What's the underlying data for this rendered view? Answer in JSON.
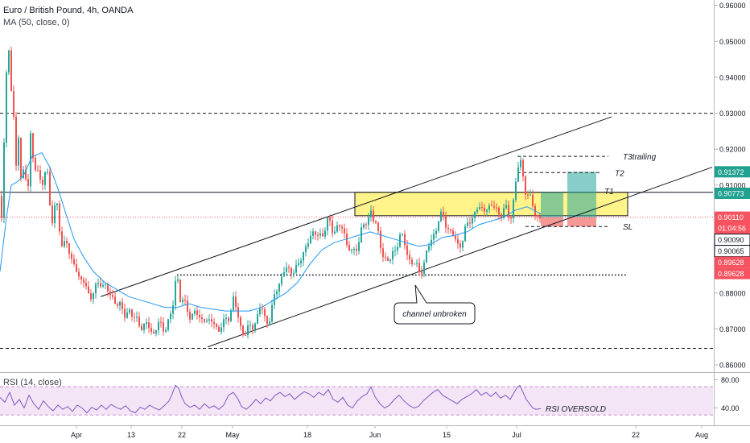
{
  "header": {
    "pair": "Euro / British Pound",
    "timeframe": "4h",
    "exchange": "OANDA",
    "ma_label": "MA (50, close, 0)",
    "rsi_label": "RSI (14, close)"
  },
  "chart_data": {
    "type": "candlestick",
    "y_axis": {
      "ticks": [
        "0.96000",
        "0.95000",
        "0.94000",
        "0.93000",
        "0.92000",
        "0.91000",
        "0.90000",
        "0.89000",
        "0.88000",
        "0.87000",
        "0.86000"
      ],
      "range": [
        0.858,
        0.9615
      ]
    },
    "x_axis": {
      "ticks": [
        "Apr",
        "13",
        "22",
        "May",
        "18",
        "Jun",
        "15",
        "Jul",
        "22",
        "Aug"
      ]
    },
    "price_path": [
      [
        0,
        0.907
      ],
      [
        2,
        0.901
      ],
      [
        4,
        0.915
      ],
      [
        7,
        0.935
      ],
      [
        10,
        0.95
      ],
      [
        14,
        0.938
      ],
      [
        17,
        0.93
      ],
      [
        20,
        0.914
      ],
      [
        24,
        0.925
      ],
      [
        27,
        0.906
      ],
      [
        30,
        0.919
      ],
      [
        34,
        0.906
      ],
      [
        38,
        0.923
      ],
      [
        42,
        0.914
      ],
      [
        46,
        0.917
      ],
      [
        52,
        0.908
      ],
      [
        58,
        0.916
      ],
      [
        64,
        0.9
      ],
      [
        70,
        0.905
      ],
      [
        76,
        0.894
      ],
      [
        82,
        0.895
      ],
      [
        88,
        0.888
      ],
      [
        94,
        0.889
      ],
      [
        100,
        0.882
      ],
      [
        106,
        0.883
      ],
      [
        112,
        0.879
      ],
      [
        118,
        0.88
      ],
      [
        124,
        0.884
      ],
      [
        130,
        0.882
      ],
      [
        136,
        0.879
      ],
      [
        142,
        0.879
      ],
      [
        148,
        0.876
      ],
      [
        154,
        0.874
      ],
      [
        160,
        0.876
      ],
      [
        166,
        0.872
      ],
      [
        172,
        0.873
      ],
      [
        178,
        0.87
      ],
      [
        184,
        0.871
      ],
      [
        190,
        0.869
      ],
      [
        196,
        0.871
      ],
      [
        202,
        0.87
      ],
      [
        208,
        0.872
      ],
      [
        214,
        0.874
      ],
      [
        218,
        0.883
      ],
      [
        221,
        0.8845
      ],
      [
        224,
        0.879
      ],
      [
        230,
        0.876
      ],
      [
        236,
        0.874
      ],
      [
        242,
        0.875
      ],
      [
        248,
        0.872
      ],
      [
        254,
        0.874
      ],
      [
        260,
        0.871
      ],
      [
        266,
        0.872
      ],
      [
        272,
        0.87
      ],
      [
        278,
        0.871
      ],
      [
        284,
        0.874
      ],
      [
        290,
        0.878
      ],
      [
        296,
        0.873
      ],
      [
        300,
        0.87
      ],
      [
        306,
        0.869
      ],
      [
        312,
        0.87
      ],
      [
        318,
        0.873
      ],
      [
        324,
        0.876
      ],
      [
        330,
        0.872
      ],
      [
        336,
        0.874
      ],
      [
        342,
        0.879
      ],
      [
        348,
        0.884
      ],
      [
        354,
        0.887
      ],
      [
        360,
        0.885
      ],
      [
        366,
        0.888
      ],
      [
        372,
        0.887
      ],
      [
        378,
        0.892
      ],
      [
        384,
        0.896
      ],
      [
        390,
        0.895
      ],
      [
        396,
        0.898
      ],
      [
        402,
        0.895
      ],
      [
        408,
        0.901
      ],
      [
        414,
        0.898
      ],
      [
        420,
        0.897
      ],
      [
        426,
        0.899
      ],
      [
        432,
        0.893
      ],
      [
        438,
        0.89
      ],
      [
        444,
        0.894
      ],
      [
        450,
        0.898
      ],
      [
        456,
        0.899
      ],
      [
        461,
        0.904
      ],
      [
        466,
        0.899
      ],
      [
        472,
        0.894
      ],
      [
        478,
        0.89
      ],
      [
        484,
        0.888
      ],
      [
        490,
        0.892
      ],
      [
        496,
        0.896
      ],
      [
        502,
        0.894
      ],
      [
        508,
        0.89
      ],
      [
        514,
        0.888
      ],
      [
        520,
        0.886
      ],
      [
        526,
        0.888
      ],
      [
        532,
        0.892
      ],
      [
        538,
        0.896
      ],
      [
        544,
        0.9
      ],
      [
        550,
        0.901
      ],
      [
        556,
        0.899
      ],
      [
        562,
        0.896
      ],
      [
        568,
        0.893
      ],
      [
        574,
        0.895
      ],
      [
        580,
        0.898
      ],
      [
        586,
        0.901
      ],
      [
        592,
        0.904
      ],
      [
        598,
        0.902
      ],
      [
        604,
        0.905
      ],
      [
        610,
        0.903
      ],
      [
        616,
        0.904
      ],
      [
        622,
        0.902
      ],
      [
        628,
        0.903
      ],
      [
        634,
        0.901
      ],
      [
        638,
        0.906
      ],
      [
        642,
        0.912
      ],
      [
        646,
        0.917
      ],
      [
        650,
        0.913
      ],
      [
        654,
        0.908
      ],
      [
        658,
        0.906
      ],
      [
        662,
        0.904
      ],
      [
        666,
        0.902
      ],
      [
        672,
        0.9011
      ]
    ],
    "ma50_path": [
      [
        0,
        0.886
      ],
      [
        8,
        0.901
      ],
      [
        14,
        0.91
      ],
      [
        22,
        0.911
      ],
      [
        30,
        0.913
      ],
      [
        40,
        0.918
      ],
      [
        52,
        0.919
      ],
      [
        62,
        0.915
      ],
      [
        72,
        0.909
      ],
      [
        82,
        0.902
      ],
      [
        92,
        0.895
      ],
      [
        104,
        0.89
      ],
      [
        116,
        0.886
      ],
      [
        130,
        0.883
      ],
      [
        145,
        0.881
      ],
      [
        160,
        0.879
      ],
      [
        175,
        0.878
      ],
      [
        190,
        0.877
      ],
      [
        205,
        0.876
      ],
      [
        220,
        0.876
      ],
      [
        235,
        0.877
      ],
      [
        250,
        0.876
      ],
      [
        265,
        0.8755
      ],
      [
        280,
        0.875
      ],
      [
        295,
        0.875
      ],
      [
        310,
        0.875
      ],
      [
        325,
        0.876
      ],
      [
        340,
        0.878
      ],
      [
        355,
        0.88
      ],
      [
        370,
        0.883
      ],
      [
        385,
        0.888
      ],
      [
        400,
        0.892
      ],
      [
        415,
        0.894
      ],
      [
        430,
        0.895
      ],
      [
        445,
        0.896
      ],
      [
        460,
        0.897
      ],
      [
        475,
        0.896
      ],
      [
        490,
        0.895
      ],
      [
        505,
        0.894
      ],
      [
        520,
        0.893
      ],
      [
        535,
        0.8935
      ],
      [
        550,
        0.8955
      ],
      [
        565,
        0.896
      ],
      [
        580,
        0.897
      ],
      [
        595,
        0.899
      ],
      [
        610,
        0.9
      ],
      [
        625,
        0.901
      ],
      [
        640,
        0.903
      ],
      [
        655,
        0.904
      ],
      [
        672,
        0.902
      ]
    ],
    "channel_upper": [
      [
        125,
        0.879
      ],
      [
        760,
        0.929
      ]
    ],
    "channel_lower": [
      [
        258,
        0.865
      ],
      [
        885,
        0.915
      ]
    ],
    "supply_zone": {
      "x1": 441,
      "x2": 780,
      "y_top": 0.908,
      "y_bottom": 0.9015
    },
    "levels": [
      {
        "name": "dashed-high",
        "value": 0.93,
        "x1": 0,
        "x2": 886,
        "style": "dashed"
      },
      {
        "name": "dashed-low",
        "value": 0.8646,
        "x1": 0,
        "x2": 886,
        "style": "dashed"
      },
      {
        "name": "solid-resistance",
        "value": 0.908,
        "x1": 0,
        "x2": 886,
        "style": "solid"
      },
      {
        "name": "dotted-support",
        "value": 0.885,
        "x1": 220,
        "x2": 778,
        "style": "dotted"
      },
      {
        "name": "current-price",
        "value": 0.9011,
        "x1": 0,
        "x2": 886,
        "style": "price"
      }
    ],
    "target_lines": [
      {
        "label": "T3trailing",
        "value": 0.918,
        "x1": 643,
        "x2": 770
      },
      {
        "label": "T2",
        "value": 0.9135,
        "x1": 643,
        "x2": 760
      },
      {
        "label": "SL",
        "value": 0.8985,
        "x1": 653,
        "x2": 770
      }
    ],
    "t1_label": "T1",
    "positions": [
      {
        "x1": 672,
        "x2": 700,
        "entry": 0.9011,
        "target": 0.908,
        "stop": 0.8985
      },
      {
        "x1": 705,
        "x2": 741,
        "entry": 0.9011,
        "target": 0.9137,
        "stop": 0.8985
      }
    ],
    "price_labels": [
      {
        "value": 0.91372,
        "text": "0.91372",
        "color": "#21a18f"
      },
      {
        "value": 0.90773,
        "text": "0.90773",
        "color": "#21a18f"
      },
      {
        "value": 0.9011,
        "text": "0.90110",
        "color": "#f7525f",
        "countdown": "01:04:56"
      },
      {
        "value": 0.9009,
        "text": "0.90090",
        "color": "#131722",
        "outline": true
      },
      {
        "value": 0.90065,
        "text": "0.90065",
        "color": "#131722",
        "outline": true
      },
      {
        "value": 0.89628,
        "text": "0.89628",
        "color": "#f7525f"
      },
      {
        "value": 0.89628,
        "text": "0.89628",
        "color": "#f7525f",
        "offset": 1
      }
    ],
    "annotations": {
      "callout": "channel unbroken",
      "rsi_note": "RSI OVERSOLD"
    },
    "rsi": {
      "ticks": [
        "80.00",
        "40.00"
      ],
      "range": [
        20,
        85
      ],
      "band": [
        30,
        70
      ],
      "path": [
        [
          0,
          55
        ],
        [
          6,
          48
        ],
        [
          12,
          62
        ],
        [
          18,
          44
        ],
        [
          24,
          52
        ],
        [
          30,
          40
        ],
        [
          36,
          58
        ],
        [
          42,
          46
        ],
        [
          48,
          38
        ],
        [
          54,
          50
        ],
        [
          60,
          42
        ],
        [
          66,
          36
        ],
        [
          72,
          44
        ],
        [
          78,
          38
        ],
        [
          84,
          42
        ],
        [
          90,
          35
        ],
        [
          96,
          44
        ],
        [
          102,
          40
        ],
        [
          108,
          33
        ],
        [
          114,
          41
        ],
        [
          120,
          37
        ],
        [
          126,
          44
        ],
        [
          132,
          38
        ],
        [
          138,
          45
        ],
        [
          144,
          41
        ],
        [
          150,
          38
        ],
        [
          156,
          43
        ],
        [
          162,
          36
        ],
        [
          168,
          33
        ],
        [
          174,
          41
        ],
        [
          180,
          38
        ],
        [
          186,
          44
        ],
        [
          192,
          40
        ],
        [
          198,
          37
        ],
        [
          204,
          43
        ],
        [
          210,
          50
        ],
        [
          214,
          60
        ],
        [
          218,
          72
        ],
        [
          222,
          68
        ],
        [
          226,
          55
        ],
        [
          230,
          46
        ],
        [
          236,
          41
        ],
        [
          242,
          44
        ],
        [
          248,
          38
        ],
        [
          254,
          46
        ],
        [
          260,
          40
        ],
        [
          266,
          43
        ],
        [
          272,
          38
        ],
        [
          278,
          44
        ],
        [
          284,
          58
        ],
        [
          290,
          62
        ],
        [
          296,
          52
        ],
        [
          300,
          42
        ],
        [
          306,
          38
        ],
        [
          312,
          44
        ],
        [
          318,
          52
        ],
        [
          324,
          46
        ],
        [
          330,
          54
        ],
        [
          336,
          50
        ],
        [
          342,
          58
        ],
        [
          348,
          62
        ],
        [
          354,
          56
        ],
        [
          360,
          60
        ],
        [
          366,
          52
        ],
        [
          372,
          58
        ],
        [
          378,
          63
        ],
        [
          384,
          60
        ],
        [
          390,
          55
        ],
        [
          396,
          62
        ],
        [
          402,
          58
        ],
        [
          408,
          66
        ],
        [
          414,
          52
        ],
        [
          420,
          48
        ],
        [
          426,
          55
        ],
        [
          432,
          44
        ],
        [
          438,
          40
        ],
        [
          444,
          50
        ],
        [
          450,
          56
        ],
        [
          456,
          60
        ],
        [
          461,
          70
        ],
        [
          466,
          56
        ],
        [
          472,
          46
        ],
        [
          478,
          40
        ],
        [
          484,
          44
        ],
        [
          490,
          52
        ],
        [
          496,
          58
        ],
        [
          502,
          50
        ],
        [
          508,
          44
        ],
        [
          514,
          40
        ],
        [
          520,
          42
        ],
        [
          526,
          50
        ],
        [
          532,
          56
        ],
        [
          538,
          62
        ],
        [
          544,
          66
        ],
        [
          550,
          58
        ],
        [
          556,
          54
        ],
        [
          562,
          50
        ],
        [
          568,
          46
        ],
        [
          574,
          52
        ],
        [
          580,
          56
        ],
        [
          586,
          60
        ],
        [
          592,
          66
        ],
        [
          598,
          58
        ],
        [
          604,
          62
        ],
        [
          610,
          56
        ],
        [
          616,
          62
        ],
        [
          622,
          54
        ],
        [
          628,
          58
        ],
        [
          634,
          52
        ],
        [
          638,
          60
        ],
        [
          642,
          68
        ],
        [
          646,
          72
        ],
        [
          650,
          62
        ],
        [
          654,
          52
        ],
        [
          658,
          46
        ],
        [
          662,
          40
        ],
        [
          666,
          38
        ],
        [
          672,
          39
        ]
      ]
    }
  }
}
